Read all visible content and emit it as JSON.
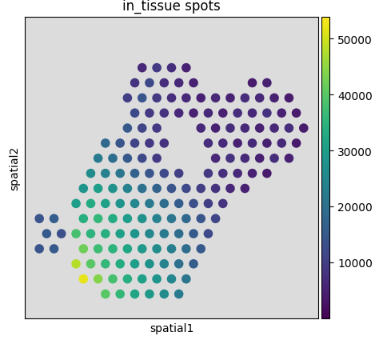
{
  "chart_data": {
    "type": "scatter",
    "title": "in_tissue spots",
    "x_label": "spatial1",
    "y_label": "spatial2",
    "xlim": [
      0,
      100
    ],
    "ylim": [
      100,
      0
    ],
    "tick_labels": false,
    "grid": false,
    "colorbar": {
      "range": [
        0,
        54000
      ],
      "ticks": [
        10000,
        20000,
        30000,
        40000,
        50000
      ]
    },
    "rows": [
      {
        "y": 17,
        "x": [
          40,
          45,
          50,
          55
        ],
        "values": [
          6000,
          9000,
          7000,
          5000
        ]
      },
      {
        "y": 22,
        "x": [
          37.5,
          42.5,
          47.5,
          52.5,
          57.5,
          77.5,
          82.5
        ],
        "values": [
          8000,
          12000,
          7000,
          6000,
          5000,
          4000,
          5000
        ]
      },
      {
        "y": 27,
        "x": [
          35,
          40,
          45,
          50,
          55,
          60,
          65,
          70,
          75,
          80,
          85,
          90
        ],
        "values": [
          10000,
          14000,
          9000,
          7000,
          6000,
          5000,
          6000,
          5000,
          7000,
          6000,
          5000,
          4000
        ]
      },
      {
        "y": 32,
        "x": [
          37.5,
          42.5,
          47.5,
          52.5,
          57.5,
          62.5,
          67.5,
          72.5,
          77.5,
          82.5,
          87.5,
          92.5
        ],
        "values": [
          12000,
          9000,
          8000,
          6000,
          5000,
          6000,
          5000,
          7000,
          6000,
          8000,
          5000,
          4000
        ]
      },
      {
        "y": 37,
        "x": [
          35,
          40,
          45,
          60,
          65,
          70,
          75,
          80,
          85,
          90,
          95
        ],
        "values": [
          15000,
          11000,
          9000,
          6000,
          5000,
          7000,
          6000,
          5000,
          6000,
          7000,
          4000
        ]
      },
      {
        "y": 42,
        "x": [
          27.5,
          32.5,
          37.5,
          42.5,
          47.5,
          62.5,
          67.5,
          72.5,
          77.5,
          82.5,
          87.5,
          92.5
        ],
        "values": [
          18000,
          14000,
          11000,
          9000,
          8000,
          7000,
          6000,
          5000,
          6000,
          5000,
          6000,
          4000
        ]
      },
      {
        "y": 47,
        "x": [
          25,
          30,
          35,
          40,
          45,
          65,
          70,
          75,
          80,
          85,
          90
        ],
        "values": [
          22000,
          19000,
          15000,
          12000,
          9000,
          6000,
          8000,
          6000,
          5000,
          7000,
          5000
        ]
      },
      {
        "y": 52,
        "x": [
          22.5,
          27.5,
          32.5,
          37.5,
          42.5,
          47.5,
          52.5,
          62.5,
          67.5,
          72.5,
          77.5,
          82.5
        ],
        "values": [
          26000,
          24000,
          21000,
          17000,
          14000,
          12000,
          10000,
          9000,
          7000,
          6000,
          5000,
          4000
        ]
      },
      {
        "y": 57,
        "x": [
          20,
          25,
          30,
          35,
          40,
          45,
          50,
          55,
          60,
          65,
          70,
          75
        ],
        "values": [
          28000,
          30000,
          27000,
          24000,
          20000,
          17000,
          14000,
          12000,
          10000,
          8000,
          6000,
          5000
        ]
      },
      {
        "y": 62,
        "x": [
          17.5,
          22.5,
          27.5,
          32.5,
          37.5,
          42.5,
          47.5,
          52.5,
          57.5,
          62.5,
          67.5
        ],
        "values": [
          30000,
          33000,
          31000,
          28000,
          25000,
          22000,
          19000,
          16000,
          13000,
          10000,
          8000
        ]
      },
      {
        "y": 67,
        "x": [
          5,
          10,
          20,
          25,
          30,
          35,
          40,
          45,
          50,
          55,
          60,
          65
        ],
        "values": [
          14000,
          16000,
          34000,
          36000,
          33000,
          30000,
          27000,
          24000,
          21000,
          18000,
          14000,
          11000
        ]
      },
      {
        "y": 72,
        "x": [
          7.5,
          12.5,
          17.5,
          22.5,
          27.5,
          32.5,
          37.5,
          42.5,
          47.5,
          52.5,
          57.5,
          62.5
        ],
        "values": [
          15000,
          13000,
          38000,
          35000,
          34000,
          31000,
          28000,
          25000,
          22000,
          19000,
          15000,
          12000
        ]
      },
      {
        "y": 77,
        "x": [
          5,
          10,
          20,
          25,
          30,
          35,
          40,
          45,
          50,
          55,
          60
        ],
        "values": [
          14000,
          15000,
          42000,
          37000,
          35000,
          32000,
          29000,
          26000,
          23000,
          19000,
          15000
        ]
      },
      {
        "y": 82,
        "x": [
          17.5,
          22.5,
          27.5,
          32.5,
          37.5,
          42.5,
          47.5,
          52.5,
          57.5
        ],
        "values": [
          48000,
          40000,
          36000,
          33000,
          30000,
          27000,
          24000,
          20000,
          16000
        ]
      },
      {
        "y": 87,
        "x": [
          20,
          25,
          30,
          35,
          40,
          45,
          50,
          55
        ],
        "values": [
          52000,
          44000,
          38000,
          34000,
          31000,
          28000,
          25000,
          21000
        ]
      },
      {
        "y": 92,
        "x": [
          27.5,
          32.5,
          37.5,
          42.5,
          47.5,
          52.5
        ],
        "values": [
          40000,
          36000,
          32000,
          29000,
          26000,
          22000
        ]
      }
    ]
  }
}
